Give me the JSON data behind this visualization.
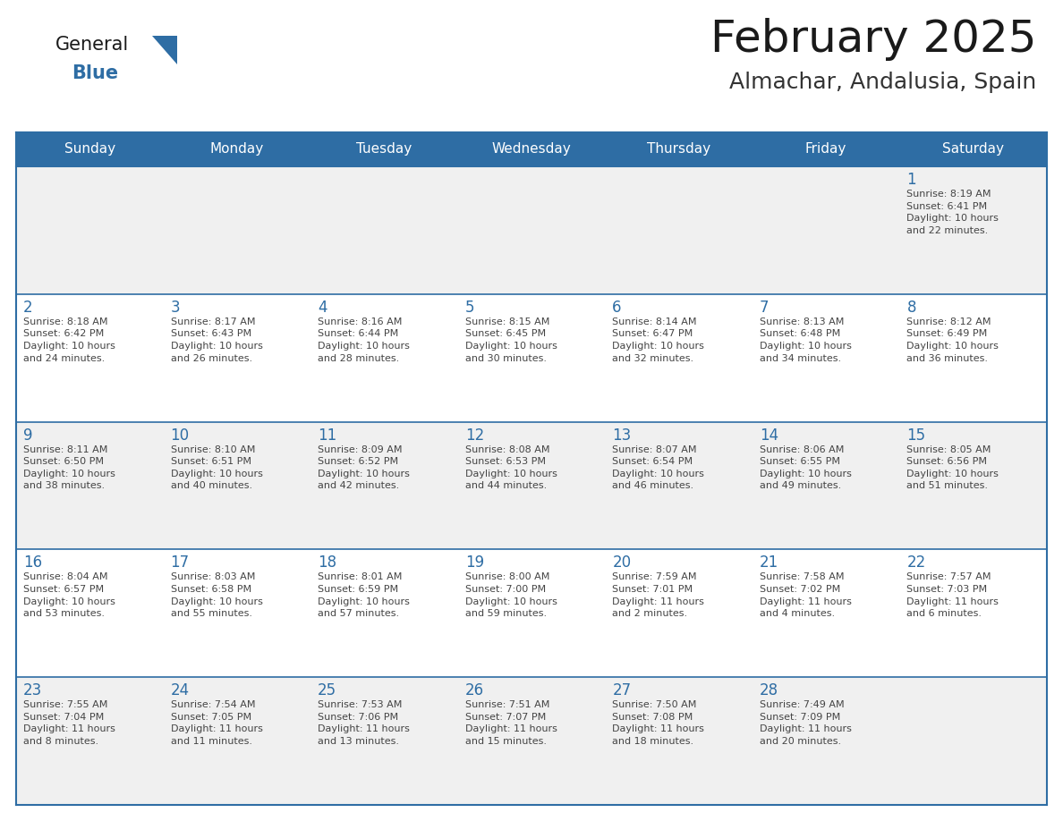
{
  "title": "February 2025",
  "subtitle": "Almachar, Andalusia, Spain",
  "header_bg": "#2E6DA4",
  "header_text_color": "#FFFFFF",
  "border_color": "#2E6DA4",
  "day_number_color": "#2E6DA4",
  "cell_text_color": "#444444",
  "cell_bg_light": "#F0F0F0",
  "cell_bg_white": "#FFFFFF",
  "day_headers": [
    "Sunday",
    "Monday",
    "Tuesday",
    "Wednesday",
    "Thursday",
    "Friday",
    "Saturday"
  ],
  "weeks": [
    [
      {
        "day": "",
        "text": ""
      },
      {
        "day": "",
        "text": ""
      },
      {
        "day": "",
        "text": ""
      },
      {
        "day": "",
        "text": ""
      },
      {
        "day": "",
        "text": ""
      },
      {
        "day": "",
        "text": ""
      },
      {
        "day": "1",
        "text": "Sunrise: 8:19 AM\nSunset: 6:41 PM\nDaylight: 10 hours\nand 22 minutes."
      }
    ],
    [
      {
        "day": "2",
        "text": "Sunrise: 8:18 AM\nSunset: 6:42 PM\nDaylight: 10 hours\nand 24 minutes."
      },
      {
        "day": "3",
        "text": "Sunrise: 8:17 AM\nSunset: 6:43 PM\nDaylight: 10 hours\nand 26 minutes."
      },
      {
        "day": "4",
        "text": "Sunrise: 8:16 AM\nSunset: 6:44 PM\nDaylight: 10 hours\nand 28 minutes."
      },
      {
        "day": "5",
        "text": "Sunrise: 8:15 AM\nSunset: 6:45 PM\nDaylight: 10 hours\nand 30 minutes."
      },
      {
        "day": "6",
        "text": "Sunrise: 8:14 AM\nSunset: 6:47 PM\nDaylight: 10 hours\nand 32 minutes."
      },
      {
        "day": "7",
        "text": "Sunrise: 8:13 AM\nSunset: 6:48 PM\nDaylight: 10 hours\nand 34 minutes."
      },
      {
        "day": "8",
        "text": "Sunrise: 8:12 AM\nSunset: 6:49 PM\nDaylight: 10 hours\nand 36 minutes."
      }
    ],
    [
      {
        "day": "9",
        "text": "Sunrise: 8:11 AM\nSunset: 6:50 PM\nDaylight: 10 hours\nand 38 minutes."
      },
      {
        "day": "10",
        "text": "Sunrise: 8:10 AM\nSunset: 6:51 PM\nDaylight: 10 hours\nand 40 minutes."
      },
      {
        "day": "11",
        "text": "Sunrise: 8:09 AM\nSunset: 6:52 PM\nDaylight: 10 hours\nand 42 minutes."
      },
      {
        "day": "12",
        "text": "Sunrise: 8:08 AM\nSunset: 6:53 PM\nDaylight: 10 hours\nand 44 minutes."
      },
      {
        "day": "13",
        "text": "Sunrise: 8:07 AM\nSunset: 6:54 PM\nDaylight: 10 hours\nand 46 minutes."
      },
      {
        "day": "14",
        "text": "Sunrise: 8:06 AM\nSunset: 6:55 PM\nDaylight: 10 hours\nand 49 minutes."
      },
      {
        "day": "15",
        "text": "Sunrise: 8:05 AM\nSunset: 6:56 PM\nDaylight: 10 hours\nand 51 minutes."
      }
    ],
    [
      {
        "day": "16",
        "text": "Sunrise: 8:04 AM\nSunset: 6:57 PM\nDaylight: 10 hours\nand 53 minutes."
      },
      {
        "day": "17",
        "text": "Sunrise: 8:03 AM\nSunset: 6:58 PM\nDaylight: 10 hours\nand 55 minutes."
      },
      {
        "day": "18",
        "text": "Sunrise: 8:01 AM\nSunset: 6:59 PM\nDaylight: 10 hours\nand 57 minutes."
      },
      {
        "day": "19",
        "text": "Sunrise: 8:00 AM\nSunset: 7:00 PM\nDaylight: 10 hours\nand 59 minutes."
      },
      {
        "day": "20",
        "text": "Sunrise: 7:59 AM\nSunset: 7:01 PM\nDaylight: 11 hours\nand 2 minutes."
      },
      {
        "day": "21",
        "text": "Sunrise: 7:58 AM\nSunset: 7:02 PM\nDaylight: 11 hours\nand 4 minutes."
      },
      {
        "day": "22",
        "text": "Sunrise: 7:57 AM\nSunset: 7:03 PM\nDaylight: 11 hours\nand 6 minutes."
      }
    ],
    [
      {
        "day": "23",
        "text": "Sunrise: 7:55 AM\nSunset: 7:04 PM\nDaylight: 11 hours\nand 8 minutes."
      },
      {
        "day": "24",
        "text": "Sunrise: 7:54 AM\nSunset: 7:05 PM\nDaylight: 11 hours\nand 11 minutes."
      },
      {
        "day": "25",
        "text": "Sunrise: 7:53 AM\nSunset: 7:06 PM\nDaylight: 11 hours\nand 13 minutes."
      },
      {
        "day": "26",
        "text": "Sunrise: 7:51 AM\nSunset: 7:07 PM\nDaylight: 11 hours\nand 15 minutes."
      },
      {
        "day": "27",
        "text": "Sunrise: 7:50 AM\nSunset: 7:08 PM\nDaylight: 11 hours\nand 18 minutes."
      },
      {
        "day": "28",
        "text": "Sunrise: 7:49 AM\nSunset: 7:09 PM\nDaylight: 11 hours\nand 20 minutes."
      },
      {
        "day": "",
        "text": ""
      }
    ]
  ],
  "logo_triangle_color": "#2E6DA4",
  "title_fontsize": 36,
  "subtitle_fontsize": 18,
  "header_fontsize": 11,
  "day_num_fontsize": 12,
  "cell_text_fontsize": 8
}
